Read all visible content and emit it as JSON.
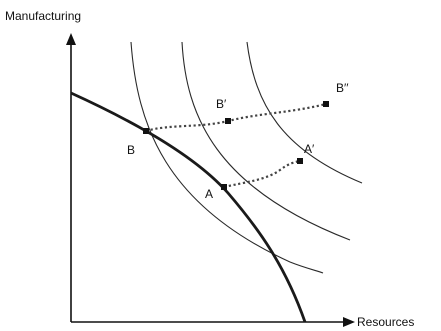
{
  "axes": {
    "y_label": "Manufacturing",
    "x_label": "Resources"
  },
  "points": {
    "A": "A",
    "A_prime": "A′",
    "B": "B",
    "B_prime": "B′",
    "B_double_prime": "B′′"
  },
  "colors": {
    "ink": "#111111",
    "ppf": "#1a1a1a",
    "indifference": "#2a2a2a",
    "path": "#444444"
  }
}
